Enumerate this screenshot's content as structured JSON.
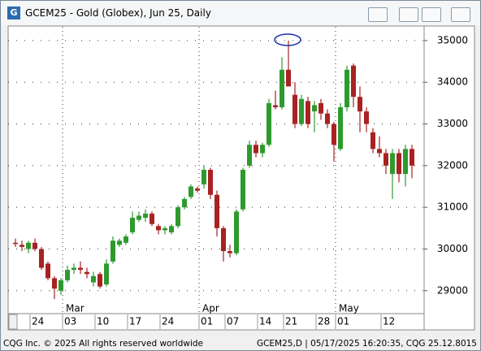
{
  "chart_data": {
    "type": "candlestick",
    "title": "GCEM25 - Gold (Globex), Jun 25, Daily",
    "categories": [
      null,
      null,
      null,
      "24",
      null,
      null,
      null,
      null,
      "03",
      null,
      null,
      null,
      null,
      "10",
      null,
      null,
      null,
      null,
      "17",
      null,
      null,
      null,
      null,
      "24",
      null,
      null,
      null,
      null,
      null,
      "01",
      null,
      null,
      null,
      "07",
      null,
      null,
      null,
      null,
      "14",
      null,
      null,
      null,
      "21",
      null,
      null,
      null,
      null,
      "28",
      null,
      null,
      "01",
      null,
      null,
      null,
      null,
      null,
      null,
      "12",
      null,
      null,
      null,
      null
    ],
    "month_labels": [
      {
        "label": "Mar",
        "index": 8
      },
      {
        "label": "Apr",
        "index": 29
      },
      {
        "label": "May",
        "index": 50
      }
    ],
    "open": [
      30150,
      30100,
      30000,
      30150,
      30000,
      29650,
      29300,
      29000,
      29250,
      29500,
      29550,
      29450,
      29200,
      29400,
      29150,
      29700,
      30100,
      30150,
      30400,
      30700,
      30750,
      30850,
      30550,
      30450,
      30400,
      30550,
      31000,
      31250,
      31450,
      31550,
      31900,
      31300,
      30500,
      29950,
      29900,
      30950,
      32000,
      32500,
      32300,
      32500,
      33450,
      33400,
      34300,
      33700,
      33000,
      33550,
      33300,
      33500,
      33250,
      33000,
      32400,
      33400,
      34400,
      33650,
      33300,
      32800,
      32400,
      32300,
      31800,
      32300,
      31800,
      32400
    ],
    "high": [
      30250,
      30200,
      30200,
      30250,
      30050,
      29700,
      29350,
      29300,
      29600,
      29650,
      29700,
      29550,
      29450,
      29450,
      29750,
      30300,
      30250,
      30350,
      30900,
      30900,
      30950,
      30900,
      30600,
      30550,
      30600,
      31050,
      31250,
      31550,
      31500,
      32000,
      31950,
      31400,
      30550,
      30100,
      30950,
      31950,
      32600,
      32600,
      32550,
      33600,
      33800,
      34600,
      35000,
      34000,
      33700,
      33650,
      33550,
      33600,
      33350,
      33050,
      33500,
      34400,
      34450,
      33900,
      33400,
      32900,
      32700,
      32400,
      32400,
      32400,
      32500,
      32500
    ],
    "low": [
      30050,
      29950,
      29900,
      29950,
      29500,
      29250,
      28800,
      28900,
      29200,
      29400,
      29400,
      29300,
      29100,
      29050,
      29100,
      29650,
      30050,
      30100,
      30350,
      30650,
      30650,
      30550,
      30350,
      30350,
      30350,
      30500,
      30950,
      31200,
      31350,
      31450,
      31200,
      30300,
      29700,
      29800,
      29850,
      30900,
      31950,
      32200,
      32200,
      32450,
      33350,
      33350,
      33900,
      32900,
      32950,
      32900,
      32800,
      33100,
      32900,
      32100,
      32350,
      33300,
      33400,
      32800,
      32800,
      32300,
      32200,
      31800,
      31200,
      31600,
      31500,
      31700
    ],
    "close": [
      30120,
      30050,
      30150,
      30000,
      29550,
      29300,
      29050,
      29250,
      29500,
      29550,
      29500,
      29400,
      29350,
      29100,
      29650,
      30200,
      30200,
      30300,
      30750,
      30800,
      30850,
      30600,
      30450,
      30500,
      30550,
      31000,
      31200,
      31500,
      31400,
      31900,
      31300,
      30500,
      29950,
      29900,
      30900,
      31900,
      32500,
      32300,
      32500,
      33500,
      33400,
      34300,
      33900,
      33000,
      33600,
      33000,
      33450,
      33250,
      33000,
      32500,
      33400,
      34300,
      33650,
      33300,
      33000,
      32400,
      32300,
      32000,
      32300,
      31800,
      32400,
      32000
    ],
    "up_color": "#2e9a2e",
    "down_color": "#a82222",
    "ylim": [
      28450,
      35330
    ],
    "yticks": [
      29000,
      30000,
      31000,
      32000,
      33000,
      34000,
      35000
    ],
    "grid": true
  },
  "footer": {
    "left": "CQG Inc. © 2025 All rights reserved worldwide",
    "right": "GCEM25,D | 05/17/2025 16:20:35, CQG 25.12.8015"
  }
}
